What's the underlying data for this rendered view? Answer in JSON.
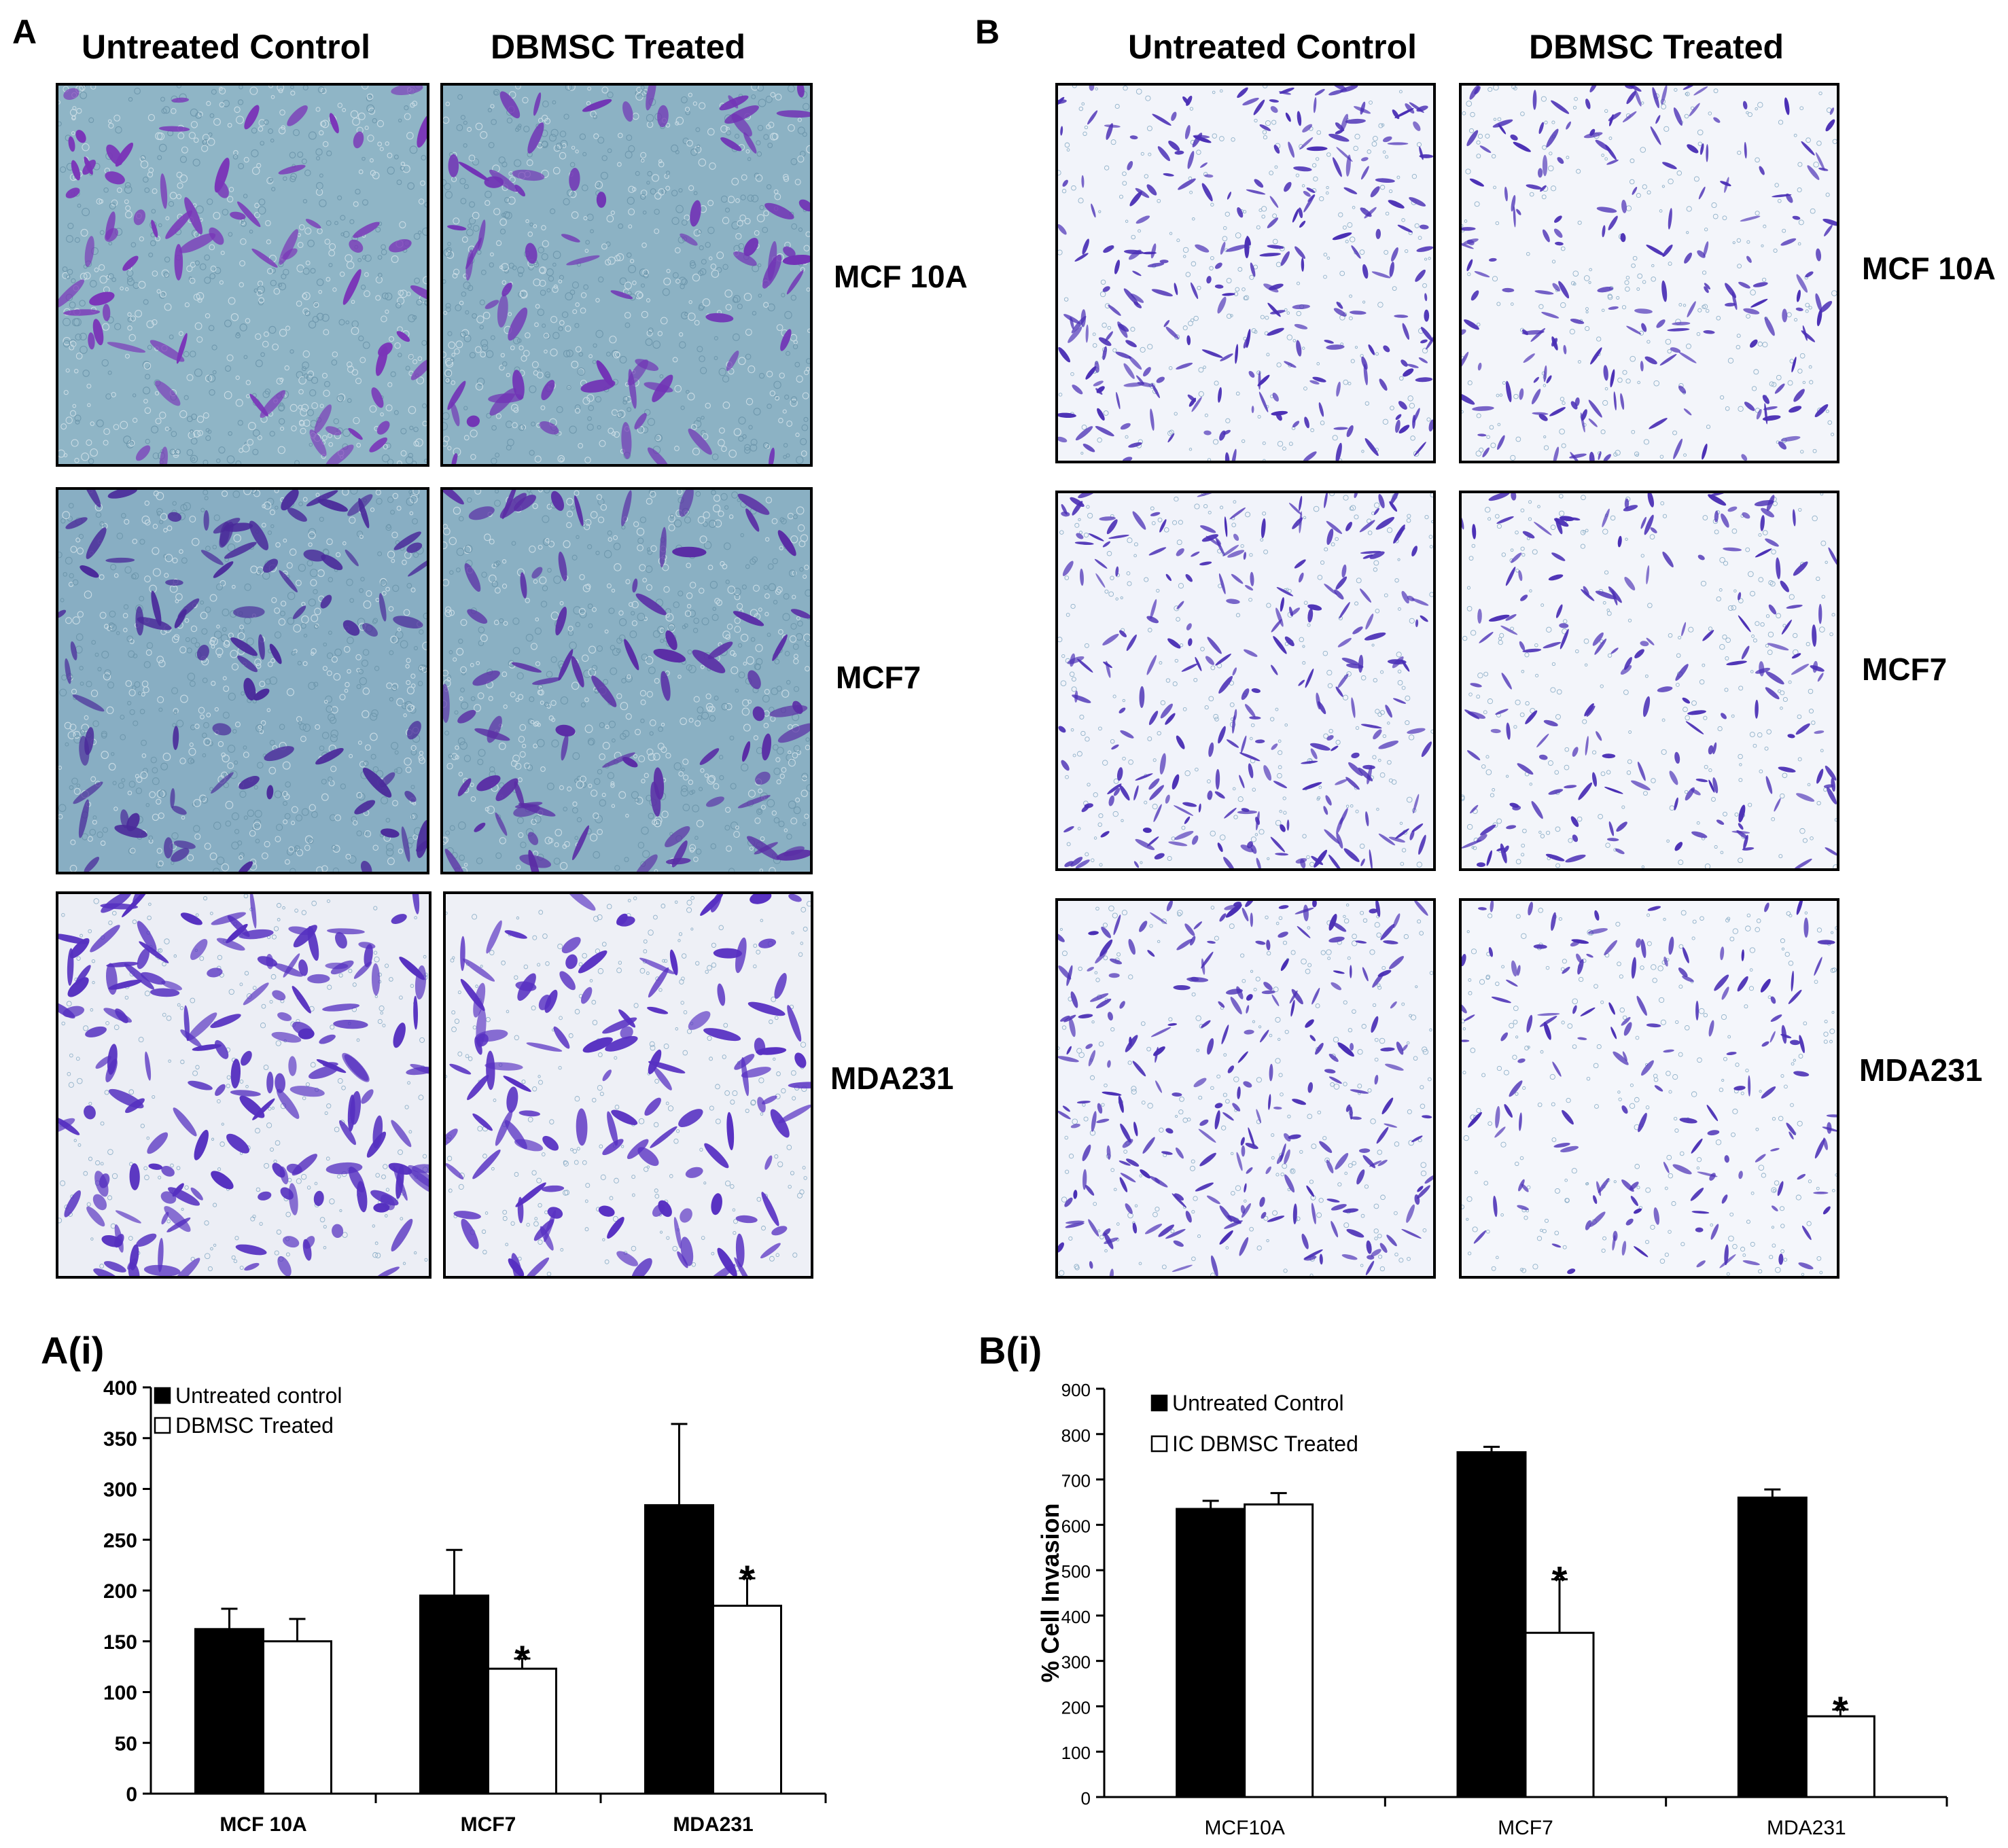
{
  "panels": {
    "A": {
      "letter": "A",
      "columns": [
        "Untreated Control",
        "DBMSC Treated"
      ],
      "rows": [
        "MCF 10A",
        "MCF7",
        "MDA231"
      ],
      "images": [
        {
          "name": "micrograph-a-mcf10a-untreated",
          "bg": "#8fb5c6",
          "cell": "#7a35b8",
          "density": 70,
          "seed": 11
        },
        {
          "name": "micrograph-a-mcf10a-treated",
          "bg": "#8cb2c4",
          "cell": "#7133b5",
          "density": 70,
          "seed": 12
        },
        {
          "name": "micrograph-a-mcf7-untreated",
          "bg": "#88aec3",
          "cell": "#4a2a9a",
          "density": 85,
          "seed": 13
        },
        {
          "name": "micrograph-a-mcf7-treated",
          "bg": "#8ab0c3",
          "cell": "#5a2da5",
          "density": 80,
          "seed": 14
        },
        {
          "name": "micrograph-a-mda231-untreated",
          "bg": "#eceef5",
          "cell": "#5530c0",
          "density": 170,
          "seed": 15
        },
        {
          "name": "micrograph-a-mda231-treated",
          "bg": "#eef0f6",
          "cell": "#5730c2",
          "density": 120,
          "seed": 16
        }
      ]
    },
    "B": {
      "letter": "B",
      "columns": [
        "Untreated Control",
        "DBMSC Treated"
      ],
      "rows": [
        "MCF 10A",
        "MCF7",
        "MDA231"
      ],
      "images": [
        {
          "name": "micrograph-b-mcf10a-untreated",
          "bg": "#f2f4fa",
          "cell": "#4a2fb5",
          "density": 260,
          "seed": 21
        },
        {
          "name": "micrograph-b-mcf10a-treated",
          "bg": "#f3f5fa",
          "cell": "#4a2fb5",
          "density": 200,
          "seed": 22
        },
        {
          "name": "micrograph-b-mcf7-untreated",
          "bg": "#f1f3fa",
          "cell": "#4a2fb5",
          "density": 250,
          "seed": 23
        },
        {
          "name": "micrograph-b-mcf7-treated",
          "bg": "#f3f5fa",
          "cell": "#4a2fb5",
          "density": 180,
          "seed": 24
        },
        {
          "name": "micrograph-b-mda231-untreated",
          "bg": "#f1f3fa",
          "cell": "#4a2fb5",
          "density": 250,
          "seed": 25
        },
        {
          "name": "micrograph-b-mda231-treated",
          "bg": "#f4f6fb",
          "cell": "#4a2fb5",
          "density": 150,
          "seed": 26
        }
      ]
    }
  },
  "chart_data": [
    {
      "title": "A(i)",
      "type": "bar",
      "categories": [
        "MCF 10A",
        "MCF7",
        "MDA231"
      ],
      "series": [
        {
          "name": "Untreated control",
          "color": "#000000",
          "values": [
            162,
            195,
            284
          ],
          "errors": [
            20,
            45,
            80
          ],
          "significant": [
            false,
            false,
            false
          ]
        },
        {
          "name": "DBMSC Treated",
          "color": "#ffffff",
          "values": [
            150,
            123,
            185
          ],
          "errors": [
            22,
            10,
            27
          ],
          "significant": [
            false,
            true,
            true
          ]
        }
      ],
      "ylim": [
        0,
        400
      ],
      "yticks": [
        0,
        50,
        100,
        150,
        200,
        250,
        300,
        350,
        400
      ],
      "ylabel": "",
      "significance_marker": "*",
      "legend": "top-left"
    },
    {
      "title": "B(i)",
      "type": "bar",
      "categories": [
        "MCF10A",
        "MCF7",
        "MDA231"
      ],
      "series": [
        {
          "name": "Untreated Control",
          "color": "#000000",
          "values": [
            635,
            760,
            660
          ],
          "errors": [
            18,
            12,
            18
          ],
          "significant": [
            false,
            false,
            false
          ]
        },
        {
          "name": "IC DBMSC Treated",
          "color": "#ffffff",
          "values": [
            645,
            362,
            178
          ],
          "errors": [
            25,
            118,
            15
          ],
          "significant": [
            false,
            true,
            true
          ]
        }
      ],
      "ylim": [
        0,
        900
      ],
      "yticks": [
        0,
        100,
        200,
        300,
        400,
        500,
        600,
        700,
        800,
        900
      ],
      "ylabel": "% Cell Invasion",
      "significance_marker": "*",
      "legend": "top-left"
    }
  ]
}
